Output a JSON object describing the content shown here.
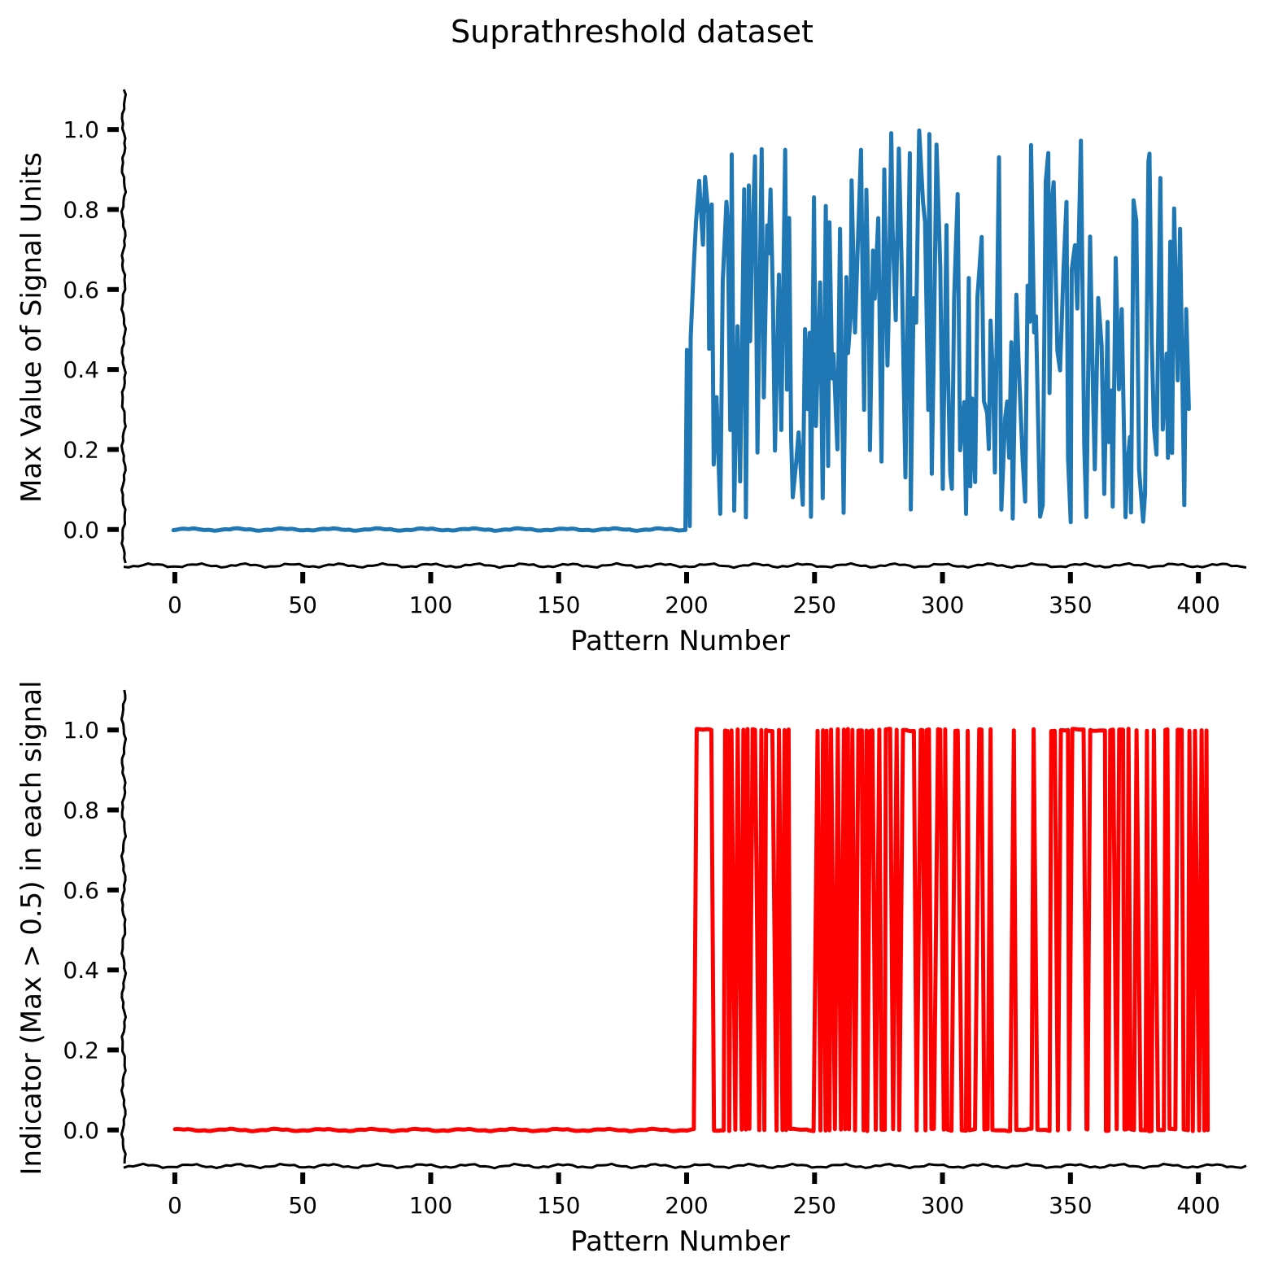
{
  "figure": {
    "title": "Suprathreshold dataset"
  },
  "chart_data": [
    {
      "type": "line",
      "title": "",
      "xlabel": "Pattern Number",
      "ylabel": "Max Value of Signal Units",
      "xlim": [
        -20,
        420
      ],
      "ylim": [
        -0.09,
        1.1
      ],
      "xticks": [
        0,
        50,
        100,
        150,
        200,
        250,
        300,
        350,
        400
      ],
      "yticks": [
        0.0,
        0.2,
        0.4,
        0.6,
        0.8,
        1.0
      ],
      "xtick_labels": [
        "0",
        "50",
        "100",
        "150",
        "200",
        "250",
        "300",
        "350",
        "400"
      ],
      "ytick_labels": [
        "0.0",
        "0.2",
        "0.4",
        "0.6",
        "0.8",
        "1.0"
      ],
      "grid": false,
      "style": "xkcd",
      "series": [
        {
          "color": "#1f77b4",
          "x_start": 0,
          "values": [
            0,
            0,
            0,
            0,
            0,
            0,
            0,
            0,
            0,
            0,
            0,
            0,
            0,
            0,
            0,
            0,
            0,
            0,
            0,
            0,
            0,
            0,
            0,
            0,
            0,
            0,
            0,
            0,
            0,
            0,
            0,
            0,
            0,
            0,
            0,
            0,
            0,
            0,
            0,
            0,
            0,
            0,
            0,
            0,
            0,
            0,
            0,
            0,
            0,
            0,
            0,
            0,
            0,
            0,
            0,
            0,
            0,
            0,
            0,
            0,
            0,
            0,
            0,
            0,
            0,
            0,
            0,
            0,
            0,
            0,
            0,
            0,
            0,
            0,
            0,
            0,
            0,
            0,
            0,
            0,
            0,
            0,
            0,
            0,
            0,
            0,
            0,
            0,
            0,
            0,
            0,
            0,
            0,
            0,
            0,
            0,
            0,
            0,
            0,
            0,
            0,
            0,
            0,
            0,
            0,
            0,
            0,
            0,
            0,
            0,
            0,
            0,
            0,
            0,
            0,
            0,
            0,
            0,
            0,
            0,
            0,
            0,
            0,
            0,
            0,
            0,
            0,
            0,
            0,
            0,
            0,
            0,
            0,
            0,
            0,
            0,
            0,
            0,
            0,
            0,
            0,
            0,
            0,
            0,
            0,
            0,
            0,
            0,
            0,
            0,
            0,
            0,
            0,
            0,
            0,
            0,
            0,
            0,
            0,
            0,
            0,
            0,
            0,
            0,
            0,
            0,
            0,
            0,
            0,
            0,
            0,
            0,
            0,
            0,
            0,
            0,
            0,
            0,
            0,
            0,
            0,
            0,
            0,
            0,
            0,
            0,
            0,
            0,
            0,
            0,
            0,
            0,
            0,
            0,
            0,
            0,
            0,
            0,
            0,
            0,
            0.45,
            0.01,
            0.48,
            0.65,
            0.77,
            0.87,
            0.71,
            0.88,
            0.79,
            0.45,
            0.81,
            0.16,
            0.33,
            0.04,
            0.62,
            0.82,
            0.77,
            0.25,
            0.94,
            0.05,
            0.51,
            0.12,
            0.85,
            0.03,
            0.86,
            0.47,
            0.71,
            0.93,
            0.19,
            0.95,
            0.33,
            0.76,
            0.69,
            0.85,
            0.58,
            0.2,
            0.64,
            0.25,
            0.95,
            0.35,
            0.78,
            0.23,
            0.08,
            0.17,
            0.24,
            0.06,
            0.5,
            0.3,
            0.49,
            0.03,
            0.83,
            0.26,
            0.62,
            0.08,
            0.81,
            0.16,
            0.77,
            0.38,
            0.44,
            0.2,
            0.75,
            0.04,
            0.63,
            0.44,
            0.53,
            0.87,
            0.49,
            0.67,
            0.95,
            0.3,
            0.85,
            0.46,
            0.2,
            0.7,
            0.58,
            0.78,
            0.17,
            0.9,
            0.41,
            0.52,
            0.99,
            0.75,
            0.52,
            0.95,
            0.64,
            0.13,
            0.44,
            0.94,
            0.05,
            0.58,
            0.52,
            1.0,
            0.82,
            0.77,
            0.3,
            0.99,
            0.14,
            0.45,
            0.96,
            0.65,
            0.1,
            0.76,
            0.42,
            0.14,
            0.1,
            0.58,
            0.84,
            0.2,
            0.32,
            0.04,
            0.63,
            0.11,
            0.33,
            0.12,
            0.58,
            0.73,
            0.32,
            0.29,
            0.2,
            0.52,
            0.37,
            0.14,
            0.93,
            0.05,
            0.28,
            0.32,
            0.18,
            0.47,
            0.03,
            0.59,
            0.42,
            0.17,
            0.07,
            0.61,
            0.52,
            0.96,
            0.49,
            0.53,
            0.03,
            0.06,
            0.87,
            0.94,
            0.34,
            0.83,
            0.87,
            0.45,
            0.4,
            0.65,
            0.82,
            0.18,
            0.02,
            0.65,
            0.71,
            0.55,
            0.97,
            0.21,
            0.03,
            0.6,
            0.73,
            0.34,
            0.15,
            0.58,
            0.46,
            0.09,
            0.52,
            0.22,
            0.35,
            0.06,
            0.68,
            0.35,
            0.55,
            0.03,
            0.15,
            0.23,
            0.04,
            0.82,
            0.77,
            0.15,
            0.02,
            0.09,
            0.92,
            0.94,
            0.47,
            0.26,
            0.19,
            0.88,
            0.25,
            0.44,
            0.18,
            0.72,
            0.19,
            0.8,
            0.37,
            0.75,
            0.06,
            0.55,
            0.3
          ]
        }
      ]
    },
    {
      "type": "line",
      "title": "",
      "xlabel": "Pattern Number",
      "ylabel": "Indicator (Max > 0.5) in each signal",
      "xlim": [
        -20,
        420
      ],
      "ylim": [
        -0.09,
        1.1
      ],
      "xticks": [
        0,
        50,
        100,
        150,
        200,
        250,
        300,
        350,
        400
      ],
      "yticks": [
        0.0,
        0.2,
        0.4,
        0.6,
        0.8,
        1.0
      ],
      "xtick_labels": [
        "0",
        "50",
        "100",
        "150",
        "200",
        "250",
        "300",
        "350",
        "400"
      ],
      "ytick_labels": [
        "0.0",
        "0.2",
        "0.4",
        "0.6",
        "0.8",
        "1.0"
      ],
      "grid": false,
      "style": "xkcd",
      "series": [
        {
          "color": "#ff0000",
          "x_start": 0,
          "values": [
            0,
            0,
            0,
            0,
            0,
            0,
            0,
            0,
            0,
            0,
            0,
            0,
            0,
            0,
            0,
            0,
            0,
            0,
            0,
            0,
            0,
            0,
            0,
            0,
            0,
            0,
            0,
            0,
            0,
            0,
            0,
            0,
            0,
            0,
            0,
            0,
            0,
            0,
            0,
            0,
            0,
            0,
            0,
            0,
            0,
            0,
            0,
            0,
            0,
            0,
            0,
            0,
            0,
            0,
            0,
            0,
            0,
            0,
            0,
            0,
            0,
            0,
            0,
            0,
            0,
            0,
            0,
            0,
            0,
            0,
            0,
            0,
            0,
            0,
            0,
            0,
            0,
            0,
            0,
            0,
            0,
            0,
            0,
            0,
            0,
            0,
            0,
            0,
            0,
            0,
            0,
            0,
            0,
            0,
            0,
            0,
            0,
            0,
            0,
            0,
            0,
            0,
            0,
            0,
            0,
            0,
            0,
            0,
            0,
            0,
            0,
            0,
            0,
            0,
            0,
            0,
            0,
            0,
            0,
            0,
            0,
            0,
            0,
            0,
            0,
            0,
            0,
            0,
            0,
            0,
            0,
            0,
            0,
            0,
            0,
            0,
            0,
            0,
            0,
            0,
            0,
            0,
            0,
            0,
            0,
            0,
            0,
            0,
            0,
            0,
            0,
            0,
            0,
            0,
            0,
            0,
            0,
            0,
            0,
            0,
            0,
            0,
            0,
            0,
            0,
            0,
            0,
            0,
            0,
            0,
            0,
            0,
            0,
            0,
            0,
            0,
            0,
            0,
            0,
            0,
            0,
            0,
            0,
            0,
            0,
            0,
            0,
            0,
            0,
            0,
            0,
            0,
            0,
            0,
            0,
            0,
            0,
            0,
            0,
            0,
            0,
            0,
            0,
            0,
            1,
            1,
            1,
            1,
            1,
            1,
            1,
            0,
            0,
            0,
            0,
            1,
            1,
            0,
            1,
            0,
            1,
            0,
            1,
            0,
            1,
            0,
            1,
            1,
            0,
            1,
            0,
            1,
            1,
            1,
            1,
            0,
            1,
            0,
            1,
            0,
            1,
            0,
            0,
            0,
            0,
            0,
            0,
            0,
            0,
            0,
            0,
            1,
            0,
            1,
            0,
            1,
            0,
            1,
            0,
            1,
            0,
            1,
            0,
            1,
            0,
            1,
            0,
            1,
            1,
            0,
            1,
            0,
            1,
            1,
            0,
            1,
            0,
            0,
            1,
            1,
            1,
            0,
            1,
            0,
            1,
            1,
            1,
            1,
            1,
            1,
            0,
            1,
            1,
            0,
            1,
            1,
            0,
            0,
            1,
            1,
            0,
            1,
            0,
            0,
            0,
            1,
            1,
            0,
            0,
            0,
            1,
            0,
            0,
            0,
            1,
            1,
            0,
            0,
            0,
            1,
            0,
            0,
            0,
            0,
            0,
            0,
            0,
            0,
            1,
            0,
            0,
            0,
            0,
            0,
            0,
            0,
            1,
            0,
            0,
            0,
            0,
            0,
            0,
            1,
            1,
            0,
            1,
            1,
            1,
            1,
            0,
            1,
            1,
            1,
            1,
            1,
            0,
            0,
            1,
            1,
            1,
            1,
            1,
            1,
            0,
            0,
            1,
            1,
            0,
            1,
            1,
            0,
            0,
            1,
            0,
            0,
            1,
            0,
            0,
            0,
            1,
            0,
            0,
            1,
            0,
            0,
            0,
            1,
            1,
            0,
            0,
            0,
            1,
            1,
            0,
            0,
            0,
            1,
            0,
            1,
            0,
            1,
            0,
            1,
            0
          ]
        }
      ]
    }
  ]
}
